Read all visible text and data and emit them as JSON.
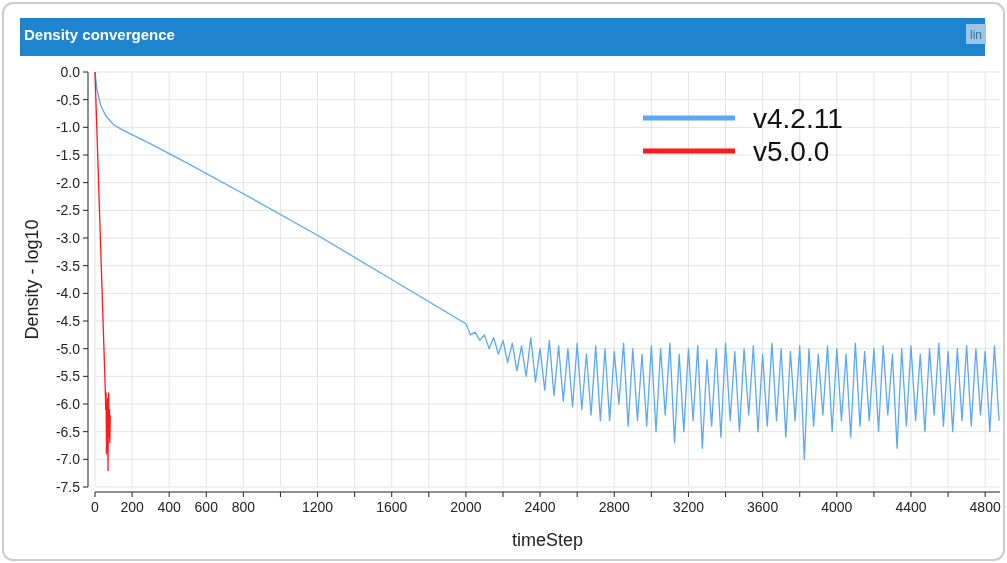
{
  "chart_data": {
    "type": "line",
    "title": "Density convergence",
    "annotations": [
      "lin"
    ],
    "xlabel": "timeStep",
    "ylabel": "Density - log10",
    "xlim": [
      0,
      4880
    ],
    "ylim": [
      -7.5,
      0
    ],
    "grid": true,
    "legend": "top right",
    "marker": "none",
    "line_style": "solid",
    "xticks": [
      0,
      200,
      400,
      600,
      800,
      {
        "value": 1000,
        "label": null
      },
      1200,
      {
        "value": 1400,
        "label": null
      },
      1600,
      {
        "value": 1800,
        "label": null
      },
      2000,
      {
        "value": 2200,
        "label": null
      },
      2400,
      {
        "value": 2600,
        "label": null
      },
      2800,
      {
        "value": 3000,
        "label": null
      },
      3200,
      {
        "value": 3400,
        "label": null
      },
      3600,
      {
        "value": 3800,
        "label": null
      },
      4000,
      {
        "value": 4200,
        "label": null
      },
      4400,
      {
        "value": 4600,
        "label": null
      },
      4800
    ],
    "yticks": [
      {
        "value": 0,
        "label": "0.0"
      },
      -0.5,
      {
        "value": -1,
        "label": "-1.0"
      },
      -1.5,
      {
        "value": -2,
        "label": "-2.0"
      },
      -2.5,
      {
        "value": -3,
        "label": "-3.0"
      },
      -3.5,
      {
        "value": -4,
        "label": "-4.0"
      },
      -4.5,
      {
        "value": -5,
        "label": "-5.0"
      },
      -5.5,
      {
        "value": -6,
        "label": "-6.0"
      },
      -6.5,
      {
        "value": -7,
        "label": "-7.0"
      },
      -7.5
    ],
    "series": [
      {
        "name": "v4.2.11",
        "color": "#5aa9f2",
        "x": [
          0,
          10,
          30,
          60,
          100,
          150,
          300,
          500,
          800,
          1200,
          1600,
          2000,
          2025,
          2050,
          2075,
          2100,
          2125,
          2150,
          2175,
          2200,
          2225,
          2250,
          2275,
          2300,
          2325,
          2350,
          2375,
          2400,
          2425,
          2450,
          2475,
          2500,
          2525,
          2550,
          2575,
          2600,
          2625,
          2650,
          2675,
          2700,
          2725,
          2750,
          2775,
          2800,
          2825,
          2850,
          2875,
          2900,
          2925,
          2950,
          2975,
          3000,
          3025,
          3050,
          3075,
          3100,
          3125,
          3150,
          3175,
          3200,
          3225,
          3250,
          3275,
          3300,
          3325,
          3350,
          3375,
          3400,
          3425,
          3450,
          3475,
          3500,
          3525,
          3550,
          3575,
          3600,
          3625,
          3650,
          3675,
          3700,
          3725,
          3750,
          3775,
          3800,
          3825,
          3850,
          3875,
          3900,
          3925,
          3950,
          3975,
          4000,
          4025,
          4050,
          4075,
          4100,
          4125,
          4150,
          4175,
          4200,
          4225,
          4250,
          4275,
          4300,
          4325,
          4350,
          4375,
          4400,
          4425,
          4450,
          4475,
          4500,
          4525,
          4550,
          4575,
          4600,
          4625,
          4650,
          4675,
          4700,
          4725,
          4750,
          4775,
          4800,
          4825,
          4850,
          4875
        ],
        "values": [
          0,
          -0.3,
          -0.6,
          -0.8,
          -0.95,
          -1.05,
          -1.3,
          -1.65,
          -2.2,
          -2.95,
          -3.75,
          -4.55,
          -4.75,
          -4.7,
          -4.85,
          -4.75,
          -5.0,
          -4.8,
          -5.1,
          -4.85,
          -5.25,
          -4.9,
          -5.4,
          -4.95,
          -5.5,
          -4.8,
          -5.6,
          -5.0,
          -5.75,
          -4.85,
          -5.85,
          -4.95,
          -5.95,
          -5.0,
          -6.05,
          -4.9,
          -6.1,
          -5.1,
          -6.2,
          -4.95,
          -6.3,
          -5.0,
          -6.3,
          -5.05,
          -6.0,
          -4.9,
          -6.4,
          -5.0,
          -6.3,
          -5.1,
          -6.4,
          -4.95,
          -6.5,
          -5.0,
          -6.2,
          -4.9,
          -6.7,
          -5.1,
          -6.5,
          -5.0,
          -6.3,
          -4.95,
          -6.8,
          -5.2,
          -6.4,
          -5.0,
          -6.6,
          -4.9,
          -6.3,
          -5.05,
          -6.5,
          -5.0,
          -6.2,
          -4.95,
          -6.5,
          -5.1,
          -6.4,
          -4.9,
          -6.3,
          -5.0,
          -6.6,
          -5.05,
          -6.3,
          -4.95,
          -7.0,
          -5.0,
          -6.4,
          -5.1,
          -6.2,
          -4.95,
          -6.5,
          -5.0,
          -6.3,
          -5.1,
          -6.6,
          -4.9,
          -6.4,
          -5.05,
          -6.3,
          -5.0,
          -6.5,
          -4.95,
          -6.2,
          -5.1,
          -6.8,
          -5.0,
          -6.4,
          -4.95,
          -6.3,
          -5.1,
          -6.5,
          -5.0,
          -6.2,
          -4.9,
          -6.4,
          -5.05,
          -6.5,
          -5.0,
          -6.3,
          -4.95,
          -6.4,
          -5.0,
          -6.2,
          -5.05,
          -6.5,
          -4.95,
          -6.3
        ]
      },
      {
        "name": "v5.0.0",
        "color": "#ff1a1a",
        "x": [
          0,
          55,
          58,
          60,
          62,
          64,
          66,
          68,
          70,
          72,
          74,
          76,
          78,
          80,
          82
        ],
        "values": [
          0,
          -5.7,
          -6.1,
          -5.8,
          -6.9,
          -6.0,
          -6.5,
          -5.9,
          -7.2,
          -6.2,
          -5.8,
          -6.6,
          -6.1,
          -6.7,
          -6.2
        ]
      }
    ]
  }
}
